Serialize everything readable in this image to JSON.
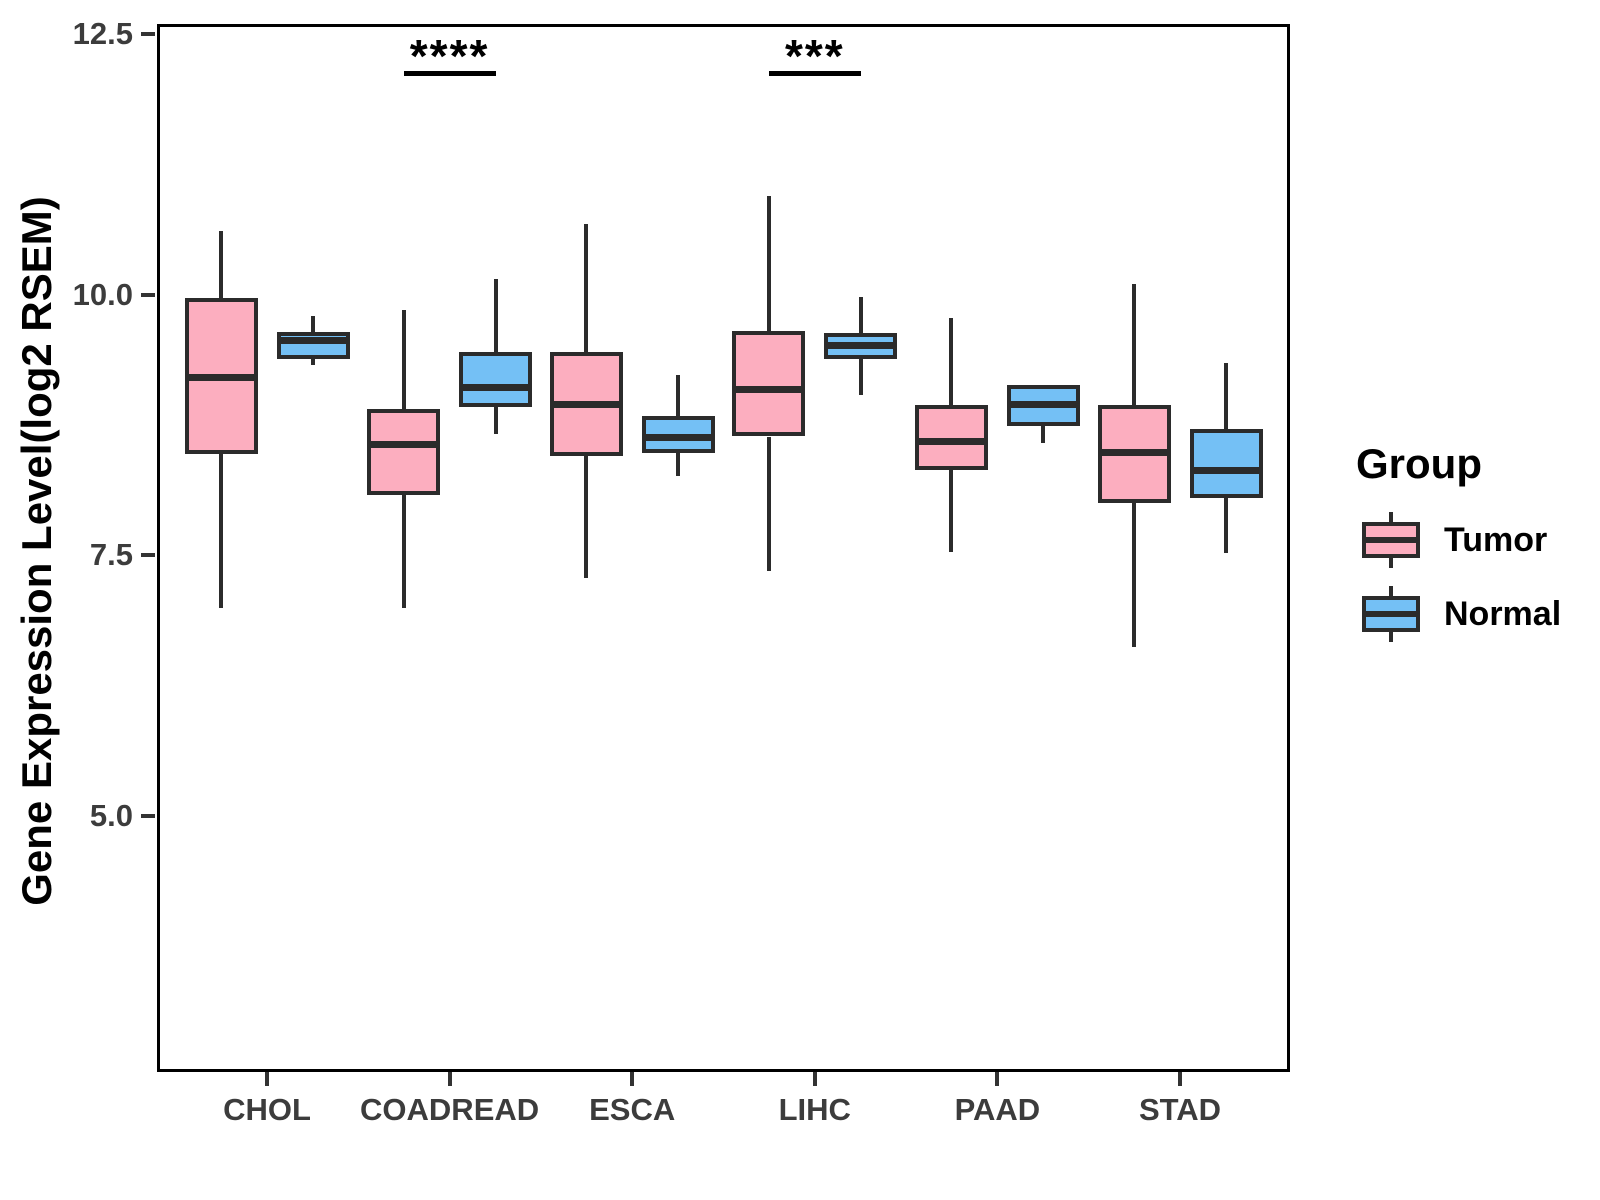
{
  "chart_data": {
    "type": "boxplot",
    "title": "",
    "xlabel": "",
    "ylabel": "Gene Expression Level(log2 RSEM)",
    "categories": [
      "CHOL",
      "COADREAD",
      "ESCA",
      "LIHC",
      "PAAD",
      "STAD"
    ],
    "y_ticks": [
      "12.5",
      "10.0",
      "7.5",
      "5.0"
    ],
    "ylim": [
      2.57,
      12.57
    ],
    "grid": false,
    "legend": {
      "title": "Group",
      "position": "right",
      "entries": [
        {
          "label": "Tumor",
          "color": "#FCAEBF"
        },
        {
          "label": "Normal",
          "color": "#74C0F5"
        }
      ]
    },
    "series": [
      {
        "name": "Tumor",
        "color": "#FCAEBF",
        "boxes": [
          {
            "category": "CHOL",
            "min": 6.99,
            "q1": 8.47,
            "median": 9.21,
            "q3": 9.97,
            "max": 10.61
          },
          {
            "category": "COADREAD",
            "min": 6.99,
            "q1": 8.08,
            "median": 8.56,
            "q3": 8.9,
            "max": 9.85
          },
          {
            "category": "ESCA",
            "min": 7.28,
            "q1": 8.45,
            "median": 8.95,
            "q3": 9.45,
            "max": 10.68
          },
          {
            "category": "LIHC",
            "min": 7.35,
            "q1": 8.64,
            "median": 9.09,
            "q3": 9.65,
            "max": 10.95
          },
          {
            "category": "PAAD",
            "min": 7.53,
            "q1": 8.32,
            "median": 8.59,
            "q3": 8.94,
            "max": 9.78
          },
          {
            "category": "STAD",
            "min": 6.62,
            "q1": 8.0,
            "median": 8.49,
            "q3": 8.94,
            "max": 10.1
          }
        ]
      },
      {
        "name": "Normal",
        "color": "#74C0F5",
        "boxes": [
          {
            "category": "CHOL",
            "min": 9.33,
            "q1": 9.38,
            "median": 9.56,
            "q3": 9.64,
            "max": 9.8
          },
          {
            "category": "COADREAD",
            "min": 8.66,
            "q1": 8.92,
            "median": 9.11,
            "q3": 9.45,
            "max": 10.15
          },
          {
            "category": "ESCA",
            "min": 8.26,
            "q1": 8.48,
            "median": 8.63,
            "q3": 8.84,
            "max": 9.23
          },
          {
            "category": "LIHC",
            "min": 9.04,
            "q1": 9.38,
            "median": 9.51,
            "q3": 9.63,
            "max": 9.98
          },
          {
            "category": "PAAD",
            "min": 8.58,
            "q1": 8.74,
            "median": 8.95,
            "q3": 9.13,
            "max": 9.13
          },
          {
            "category": "STAD",
            "min": 7.52,
            "q1": 8.05,
            "median": 8.31,
            "q3": 8.71,
            "max": 9.35
          }
        ]
      }
    ],
    "annotations": [
      {
        "category": "COADREAD",
        "text": "****"
      },
      {
        "category": "LIHC",
        "text": "***"
      }
    ],
    "colors": {
      "box_line": "#2B2B2B",
      "axis_text": "#3C3C3C",
      "axis_line": "#000000",
      "annotation": "#000000"
    }
  }
}
